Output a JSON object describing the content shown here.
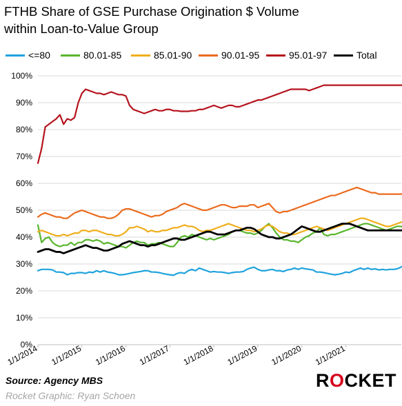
{
  "title_line1": "FTHB Share of GSE Purchase Origination $ Volume",
  "title_line2": "within Loan-to-Value Group",
  "source": "Source: Agency MBS",
  "credit": "Rocket Graphic: Ryan Schoen",
  "logo_text": "ROCKET",
  "colors": {
    "le80": "#1ea2dc",
    "s80_85": "#58b52c",
    "s85_90": "#f0ad1a",
    "s90_95": "#eb6a1d",
    "s95_97": "#b5121b",
    "total": "#000000",
    "grid": "#d9d9d9",
    "logo_accent": "#d6001c"
  },
  "chart_data": {
    "type": "line",
    "title": "FTHB Share of GSE Purchase Origination $ Volume within Loan-to-Value Group",
    "ylim": [
      0,
      100
    ],
    "yticks": [
      "0%",
      "10%",
      "20%",
      "30%",
      "40%",
      "50%",
      "60%",
      "70%",
      "80%",
      "90%",
      "100%"
    ],
    "xlim": [
      "2014-01",
      "2021-12"
    ],
    "xticks": [
      "1/1/2014",
      "1/1/2015",
      "1/1/2016",
      "1/1/2017",
      "1/1/2018",
      "1/1/2019",
      "1/1/2020",
      "1/1/2021"
    ],
    "grid": "horizontal",
    "legend": "top",
    "x_start": "2014-01",
    "frequency": "monthly",
    "series": [
      {
        "name": "<=80",
        "color_key": "le80",
        "width": 2.2,
        "values": [
          27.5,
          28.0,
          28.0,
          28.0,
          27.8,
          27.0,
          27.0,
          26.8,
          26.0,
          26.5,
          26.5,
          26.8,
          26.8,
          26.5,
          27.0,
          26.8,
          27.5,
          27.0,
          27.5,
          27.0,
          26.8,
          26.5,
          26.0,
          26.0,
          26.2,
          26.5,
          26.8,
          27.0,
          27.2,
          27.5,
          27.5,
          27.0,
          27.0,
          26.8,
          26.5,
          26.2,
          26.0,
          25.8,
          26.5,
          26.8,
          26.5,
          27.5,
          28.0,
          27.5,
          28.5,
          28.0,
          27.5,
          27.0,
          27.2,
          27.0,
          27.0,
          26.8,
          26.5,
          26.8,
          27.0,
          27.0,
          27.2,
          28.0,
          28.5,
          28.8,
          28.0,
          27.5,
          27.5,
          27.8,
          28.0,
          27.5,
          27.5,
          27.2,
          27.8,
          28.0,
          28.5,
          28.0,
          28.5,
          28.2,
          28.0,
          27.8,
          27.0,
          27.0,
          26.8,
          26.5,
          26.2,
          26.0,
          26.2,
          26.5,
          27.0,
          26.8,
          27.5,
          28.0,
          28.5,
          28.0,
          28.5,
          28.0,
          28.2,
          27.8,
          28.0,
          27.8,
          28.0,
          28.0,
          28.2,
          28.8,
          29.5,
          30.0,
          31.0,
          31.5,
          31.8,
          31.5,
          31.0,
          30.0,
          29.5,
          29.0,
          28.5,
          28.0
        ]
      },
      {
        "name": "80.01-85",
        "color_key": "s80_85",
        "width": 2.2,
        "values": [
          44.5,
          38.0,
          39.5,
          40.0,
          38.0,
          37.0,
          36.5,
          37.0,
          37.0,
          38.0,
          37.0,
          38.0,
          38.0,
          39.0,
          39.0,
          38.5,
          39.0,
          38.5,
          37.5,
          38.0,
          37.5,
          37.0,
          36.5,
          36.5,
          36.0,
          37.0,
          38.0,
          38.5,
          38.0,
          38.0,
          37.0,
          37.5,
          37.5,
          38.0,
          37.5,
          37.0,
          36.5,
          36.5,
          38.0,
          40.0,
          40.5,
          40.0,
          41.0,
          40.5,
          40.0,
          39.5,
          39.0,
          39.5,
          39.0,
          39.5,
          40.0,
          40.5,
          41.0,
          42.0,
          42.5,
          42.5,
          42.0,
          41.5,
          41.5,
          41.0,
          41.5,
          42.5,
          44.0,
          45.0,
          43.5,
          41.5,
          40.0,
          39.0,
          39.0,
          38.5,
          38.5,
          38.0,
          39.0,
          40.0,
          40.5,
          41.5,
          42.0,
          43.5,
          41.0,
          40.5,
          41.0,
          41.0,
          41.5,
          42.0,
          42.5,
          43.0,
          43.5,
          44.0,
          44.5,
          45.0,
          45.0,
          44.5,
          44.0,
          43.5,
          43.0,
          42.5,
          43.0,
          43.5,
          44.0,
          44.0,
          43.5,
          43.0,
          42.5,
          42.5,
          42.0,
          42.5,
          43.0,
          43.5,
          43.0,
          42.5,
          42.5,
          43.0
        ]
      },
      {
        "name": "85.01-90",
        "color_key": "s85_90",
        "width": 2.2,
        "values": [
          42.0,
          42.5,
          42.0,
          41.5,
          41.0,
          40.5,
          40.5,
          41.0,
          40.5,
          41.0,
          41.5,
          41.5,
          42.5,
          42.5,
          42.0,
          42.5,
          42.5,
          42.0,
          41.5,
          41.0,
          41.0,
          40.5,
          40.5,
          41.0,
          42.0,
          43.5,
          43.5,
          44.0,
          43.5,
          43.0,
          42.0,
          42.5,
          42.0,
          42.0,
          42.5,
          42.5,
          43.0,
          43.5,
          43.5,
          44.0,
          44.5,
          44.0,
          44.0,
          43.5,
          42.5,
          42.0,
          42.5,
          42.5,
          43.0,
          43.5,
          44.0,
          44.5,
          45.0,
          44.5,
          44.0,
          43.5,
          43.0,
          42.5,
          42.5,
          42.0,
          42.5,
          43.0,
          44.0,
          44.5,
          44.0,
          43.0,
          42.0,
          41.5,
          41.5,
          41.0,
          41.0,
          41.5,
          42.0,
          42.5,
          43.0,
          43.5,
          44.0,
          43.5,
          43.0,
          42.5,
          43.0,
          43.5,
          44.0,
          44.5,
          45.0,
          45.5,
          46.0,
          46.5,
          47.0,
          47.0,
          46.5,
          46.0,
          45.5,
          45.0,
          44.5,
          44.0,
          44.0,
          44.5,
          45.0,
          45.5,
          46.0,
          46.5,
          47.0,
          47.0,
          46.5,
          46.0,
          45.5,
          45.0,
          44.5,
          44.5,
          44.0,
          44.5
        ]
      },
      {
        "name": "90.01-95",
        "color_key": "s90_95",
        "width": 2.2,
        "values": [
          47.5,
          48.5,
          49.0,
          48.5,
          48.0,
          47.5,
          47.5,
          47.0,
          47.0,
          48.0,
          49.0,
          49.5,
          50.0,
          49.5,
          49.0,
          48.5,
          48.0,
          47.5,
          47.5,
          47.0,
          47.0,
          47.5,
          48.5,
          50.0,
          50.5,
          50.5,
          50.0,
          49.5,
          49.0,
          48.5,
          48.0,
          47.5,
          48.0,
          48.0,
          48.5,
          49.5,
          50.0,
          50.5,
          51.0,
          52.0,
          52.5,
          52.0,
          51.5,
          51.0,
          50.5,
          50.0,
          50.0,
          50.5,
          51.0,
          51.5,
          52.0,
          52.0,
          51.5,
          51.0,
          51.0,
          51.5,
          51.5,
          51.5,
          52.0,
          52.0,
          51.0,
          51.5,
          52.0,
          52.5,
          51.0,
          49.5,
          49.0,
          49.5,
          49.5,
          50.0,
          50.5,
          51.0,
          51.5,
          52.0,
          52.5,
          53.0,
          53.5,
          54.0,
          54.5,
          55.0,
          55.5,
          55.5,
          56.0,
          56.5,
          57.0,
          57.5,
          58.0,
          58.5,
          58.0,
          57.5,
          57.0,
          56.5,
          56.5,
          56.0,
          56.0,
          56.0,
          56.0,
          56.0,
          56.0,
          56.0,
          56.0,
          56.0,
          56.0,
          56.0,
          56.0,
          56.0,
          56.0,
          56.0,
          56.0,
          56.0,
          56.0,
          56.0
        ]
      },
      {
        "name": "95.01-97",
        "color_key": "s95_97",
        "width": 2.2,
        "values": [
          67.5,
          73.0,
          81.0,
          82.0,
          83.0,
          84.0,
          85.5,
          82.0,
          84.0,
          83.5,
          84.5,
          90.0,
          93.5,
          95.0,
          94.5,
          94.0,
          93.5,
          93.5,
          93.0,
          93.5,
          94.0,
          93.5,
          93.0,
          93.0,
          92.5,
          89.0,
          87.5,
          87.0,
          86.5,
          86.0,
          86.5,
          87.0,
          87.5,
          87.0,
          87.0,
          87.5,
          87.5,
          87.0,
          87.0,
          86.8,
          86.8,
          86.8,
          87.0,
          87.0,
          87.5,
          87.5,
          88.0,
          88.5,
          89.0,
          88.5,
          88.0,
          88.5,
          89.0,
          89.0,
          88.5,
          88.5,
          89.0,
          89.5,
          90.0,
          90.5,
          91.0,
          91.0,
          91.5,
          92.0,
          92.5,
          93.0,
          93.5,
          94.0,
          94.5,
          95.0,
          95.0,
          95.0,
          95.0,
          95.0,
          94.5,
          95.0,
          95.5,
          96.0,
          96.5,
          96.5,
          96.5,
          96.5,
          96.5,
          96.5,
          96.5,
          96.5,
          96.5,
          96.5,
          96.5,
          96.5,
          96.5,
          96.5,
          96.5,
          96.5,
          96.5,
          96.5,
          96.5,
          96.5,
          96.5,
          96.5,
          96.5,
          96.5,
          96.5,
          96.5,
          96.5,
          96.5,
          96.5,
          96.5,
          96.5,
          96.5,
          96.5,
          96.5
        ]
      },
      {
        "name": "Total",
        "color_key": "total",
        "width": 2.8,
        "values": [
          34.5,
          35.0,
          35.5,
          35.5,
          35.0,
          34.5,
          34.5,
          34.0,
          34.5,
          35.0,
          35.5,
          36.0,
          36.5,
          37.0,
          36.5,
          36.0,
          36.0,
          35.5,
          35.0,
          35.0,
          35.5,
          36.0,
          36.5,
          37.5,
          38.0,
          38.5,
          38.0,
          37.5,
          37.0,
          37.0,
          36.5,
          37.0,
          37.0,
          37.5,
          38.0,
          38.5,
          39.0,
          39.5,
          39.5,
          39.0,
          39.0,
          39.5,
          40.0,
          40.5,
          41.0,
          41.5,
          42.0,
          42.0,
          41.5,
          41.0,
          41.0,
          41.0,
          41.5,
          42.0,
          42.5,
          42.5,
          43.0,
          43.5,
          43.5,
          43.0,
          42.0,
          41.0,
          40.5,
          40.0,
          40.0,
          39.5,
          39.5,
          40.0,
          40.5,
          41.0,
          42.0,
          43.0,
          44.0,
          43.5,
          43.0,
          42.5,
          42.0,
          42.0,
          42.5,
          43.0,
          43.5,
          44.0,
          44.5,
          45.0,
          45.0,
          45.0,
          44.5,
          44.0,
          43.5,
          43.0,
          42.5,
          42.5,
          42.5,
          42.5,
          42.5,
          42.5,
          42.5,
          42.5,
          42.5,
          42.5,
          42.5,
          42.5,
          42.5,
          42.5,
          42.5,
          42.5,
          42.5,
          42.5,
          42.5,
          42.5,
          42.5,
          42.5
        ]
      }
    ]
  }
}
